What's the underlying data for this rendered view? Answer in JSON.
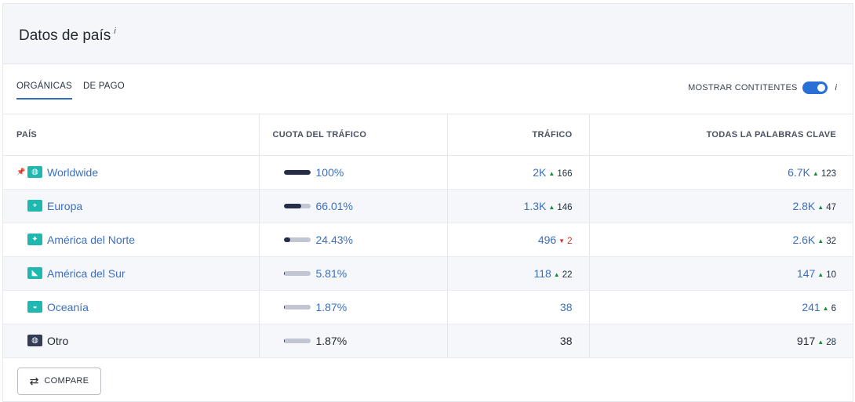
{
  "header": {
    "title": "Datos de país",
    "info": "i"
  },
  "tabs": [
    {
      "label": "ORGÁNICAS",
      "active": true
    },
    {
      "label": "DE PAGO",
      "active": false
    }
  ],
  "toggle": {
    "label": "MOSTRAR CONTITENTES",
    "on": true,
    "info": "i"
  },
  "table": {
    "columns": [
      "PAÍS",
      "CUOTA DEL TRÁFICO",
      "TRÁFICO",
      "TODAS LA PALABRAS CLAVE"
    ],
    "rows": [
      {
        "pinned": true,
        "flag": "globe-icon",
        "country": "Worldwide",
        "share": "100%",
        "share_fraction": 1.0,
        "traffic": "2K",
        "traffic_delta": "166",
        "traffic_dir": "up",
        "keywords": "6.7K",
        "keywords_delta": "123",
        "keywords_dir": "up",
        "link": true
      },
      {
        "pinned": false,
        "flag": "europe-map-icon",
        "country": "Europa",
        "share": "66.01%",
        "share_fraction": 0.6601,
        "traffic": "1.3K",
        "traffic_delta": "146",
        "traffic_dir": "up",
        "keywords": "2.8K",
        "keywords_delta": "47",
        "keywords_dir": "up",
        "link": true
      },
      {
        "pinned": false,
        "flag": "north-america-map-icon",
        "country": "América del Norte",
        "share": "24.43%",
        "share_fraction": 0.2443,
        "traffic": "496",
        "traffic_delta": "2",
        "traffic_dir": "down",
        "keywords": "2.6K",
        "keywords_delta": "32",
        "keywords_dir": "up",
        "link": true
      },
      {
        "pinned": false,
        "flag": "south-america-map-icon",
        "country": "América del Sur",
        "share": "5.81%",
        "share_fraction": 0.0581,
        "traffic": "118",
        "traffic_delta": "22",
        "traffic_dir": "up",
        "keywords": "147",
        "keywords_delta": "10",
        "keywords_dir": "up",
        "link": true
      },
      {
        "pinned": false,
        "flag": "oceania-map-icon",
        "country": "Oceanía",
        "share": "1.87%",
        "share_fraction": 0.0187,
        "traffic": "38",
        "traffic_delta": "",
        "traffic_dir": "",
        "keywords": "241",
        "keywords_delta": "6",
        "keywords_dir": "up",
        "link": true
      },
      {
        "pinned": false,
        "flag": "globe-icon",
        "country": "Otro",
        "share": "1.87%",
        "share_fraction": 0.0187,
        "traffic": "38",
        "traffic_delta": "",
        "traffic_dir": "",
        "keywords": "917",
        "keywords_delta": "28",
        "keywords_dir": "up",
        "link": false
      }
    ]
  },
  "compare": {
    "label": "COMPARE",
    "icon": "swap-arrows-icon"
  },
  "colors": {
    "accent": "#2e6fc0",
    "bar_fill": "#262d48",
    "bar_track": "#c2c6d2",
    "up": "#16893c",
    "down": "#d62f2f",
    "flag": "#1fb8b0"
  }
}
